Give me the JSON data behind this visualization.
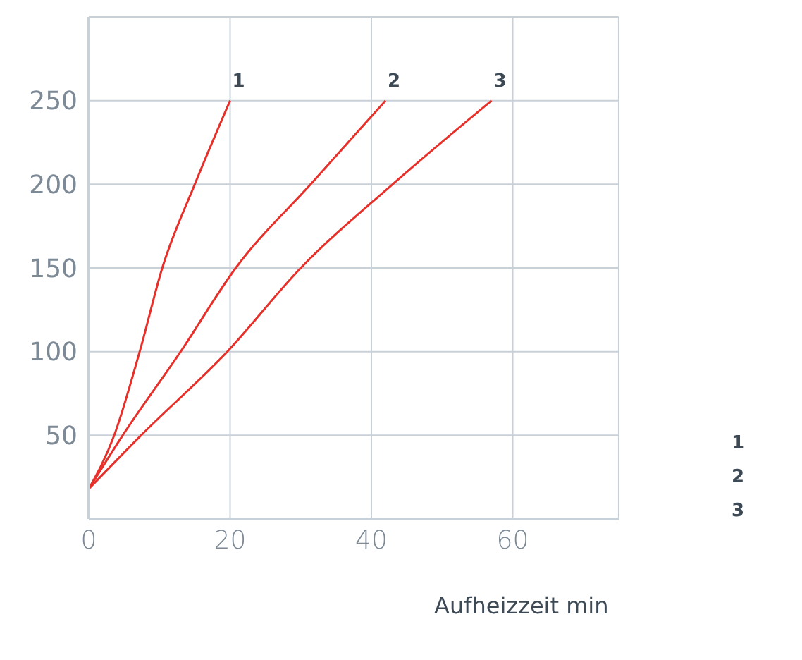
{
  "chart_data": {
    "type": "line",
    "xlabel": "Aufheizzeit min",
    "xlim": [
      0,
      75
    ],
    "xticks": [
      0,
      20,
      40,
      60
    ],
    "ylim": [
      0,
      300
    ],
    "yticks": [
      50,
      100,
      150,
      200,
      250
    ],
    "grid": true,
    "legend": "right",
    "marker": "none",
    "line_style": "solid",
    "series": [
      {
        "name": "1",
        "color": "#e8302a",
        "x": [
          0,
          3.6,
          7.2,
          10.4,
          15,
          20
        ],
        "values": [
          18,
          50,
          100,
          150,
          200,
          250
        ]
      },
      {
        "name": "2",
        "color": "#e8302a",
        "x": [
          0,
          4.8,
          13,
          20.8,
          31.4,
          42
        ],
        "values": [
          18,
          50,
          100,
          150,
          200,
          250
        ]
      },
      {
        "name": "3",
        "color": "#e8302a",
        "x": [
          0,
          7.4,
          19.6,
          30,
          43,
          57
        ],
        "values": [
          18,
          50,
          100,
          150,
          200,
          250
        ]
      }
    ]
  }
}
